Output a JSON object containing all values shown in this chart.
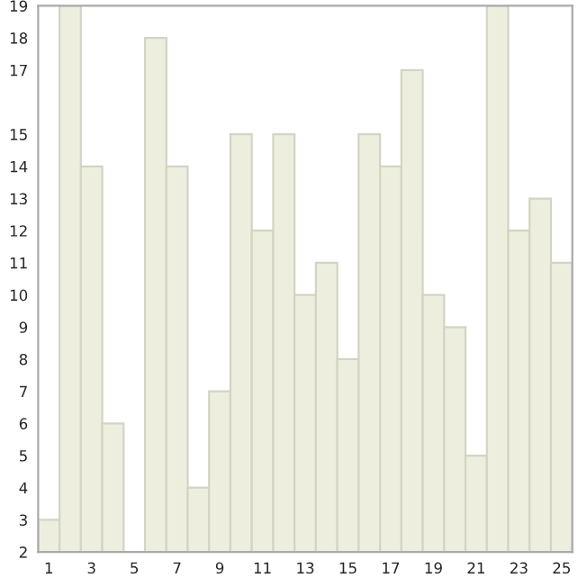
{
  "chart_data": {
    "type": "bar",
    "categories": [
      "1",
      null,
      "3",
      null,
      "5",
      null,
      "7",
      null,
      "9",
      null,
      "11",
      null,
      "13",
      null,
      "15",
      null,
      "17",
      null,
      "19",
      null,
      "21",
      null,
      "23",
      null,
      "25"
    ],
    "values": [
      3,
      19,
      14,
      6,
      2,
      18,
      14,
      4,
      7,
      15,
      12,
      15,
      10,
      11,
      8,
      15,
      14,
      17,
      10,
      9,
      5,
      19,
      12,
      13,
      11
    ],
    "color": "#eeeedf",
    "ylim": [
      2,
      19
    ],
    "yticks": [
      2,
      3,
      4,
      5,
      6,
      7,
      8,
      9,
      10,
      11,
      12,
      13,
      14,
      15,
      17,
      18,
      19
    ],
    "grid": false
  }
}
